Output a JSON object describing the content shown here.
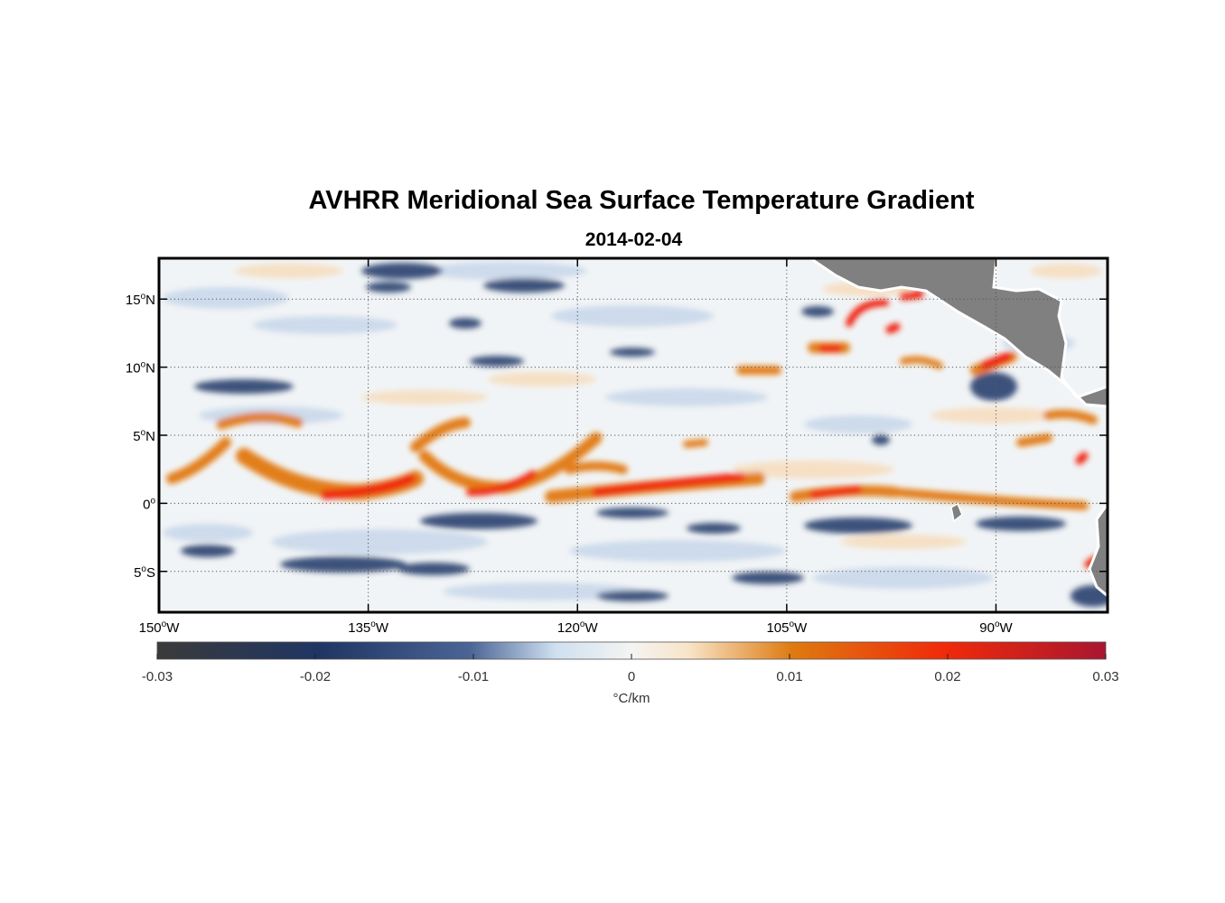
{
  "map": {
    "title": "AVHRR Meridional Sea Surface Temperature Gradient",
    "date": "2014-02-04",
    "lon_range": [
      -150,
      -82
    ],
    "lat_range": [
      -8,
      18
    ],
    "lon_ticks": [
      {
        "value": -150,
        "deg": "150",
        "hemi": "W"
      },
      {
        "value": -135,
        "deg": "135",
        "hemi": "W"
      },
      {
        "value": -120,
        "deg": "120",
        "hemi": "W"
      },
      {
        "value": -105,
        "deg": "105",
        "hemi": "W"
      },
      {
        "value": -90,
        "deg": "90",
        "hemi": "W"
      }
    ],
    "lat_ticks": [
      {
        "value": 15,
        "deg": "15",
        "hemi": "N"
      },
      {
        "value": 10,
        "deg": "10",
        "hemi": "N"
      },
      {
        "value": 5,
        "deg": "5",
        "hemi": "N"
      },
      {
        "value": 0,
        "deg": "0",
        "hemi": ""
      },
      {
        "value": -5,
        "deg": "5",
        "hemi": "S"
      }
    ],
    "grid": true,
    "land_color": "#808080",
    "projection": "equirectangular"
  },
  "colorbar": {
    "min": -0.03,
    "max": 0.03,
    "ticks": [
      "-0.03",
      "-0.02",
      "-0.01",
      "0",
      "0.01",
      "0.02",
      "0.03"
    ],
    "unit": "°C/km",
    "placement": "bottom",
    "colors": [
      "#3a3a3a",
      "#1f3563",
      "#4a6596",
      "#cfe0f0",
      "#f4f4f2",
      "#f8e4c8",
      "#de7a10",
      "#f02a0a",
      "#a81630"
    ]
  }
}
